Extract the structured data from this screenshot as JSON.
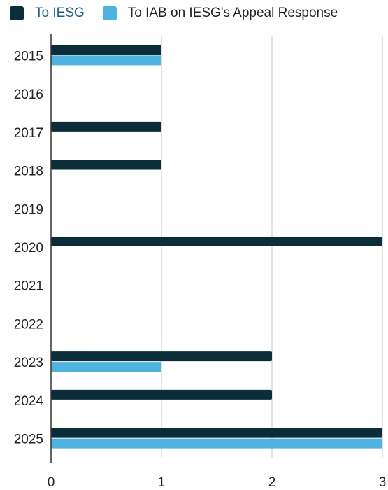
{
  "chart_data": {
    "type": "bar",
    "orientation": "horizontal",
    "categories": [
      "2015",
      "2016",
      "2017",
      "2018",
      "2019",
      "2020",
      "2021",
      "2022",
      "2023",
      "2024",
      "2025"
    ],
    "series": [
      {
        "name": "To IESG",
        "color": "#0b2d3a",
        "values": [
          1,
          0,
          1,
          1,
          0,
          3,
          0,
          0,
          2,
          2,
          3
        ]
      },
      {
        "name": "To IAB on IESG's Appeal Response",
        "color": "#4fb3e0",
        "values": [
          1,
          0,
          0,
          0,
          0,
          0,
          0,
          0,
          1,
          0,
          3
        ]
      }
    ],
    "xticks": [
      "0",
      "1",
      "2",
      "3"
    ],
    "xlim": [
      0,
      3
    ],
    "grid": true,
    "legend_position": "top"
  }
}
